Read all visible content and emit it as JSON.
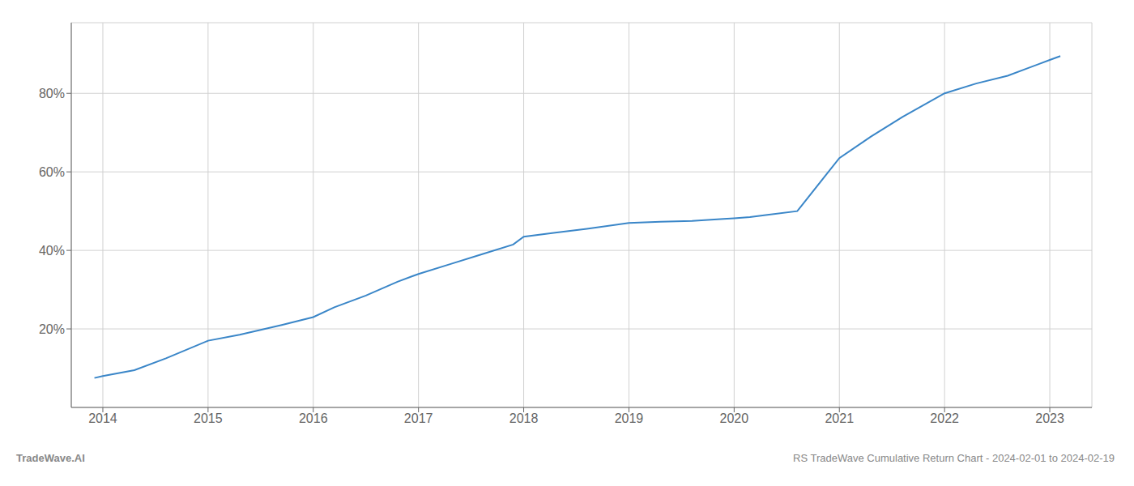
{
  "chart_data": {
    "type": "line",
    "x": [
      2013.92,
      2014.0,
      2014.3,
      2014.6,
      2015.0,
      2015.3,
      2015.7,
      2016.0,
      2016.2,
      2016.5,
      2016.8,
      2017.0,
      2017.3,
      2017.6,
      2017.9,
      2018.0,
      2018.3,
      2018.6,
      2019.0,
      2019.3,
      2019.6,
      2019.9,
      2020.0,
      2020.15,
      2020.3,
      2020.6,
      2021.0,
      2021.3,
      2021.6,
      2022.0,
      2022.3,
      2022.6,
      2022.9,
      2023.0,
      2023.1
    ],
    "values": [
      7.5,
      8.0,
      9.5,
      12.5,
      17.0,
      18.5,
      21.0,
      23.0,
      25.5,
      28.5,
      32.0,
      34.0,
      36.5,
      39.0,
      41.5,
      43.5,
      44.5,
      45.5,
      47.0,
      47.3,
      47.5,
      48.0,
      48.2,
      48.5,
      49.0,
      50.0,
      63.5,
      69.0,
      74.0,
      80.0,
      82.5,
      84.5,
      87.5,
      88.5,
      89.5
    ],
    "color": "#3a86c8",
    "xlim": [
      2013.7,
      2023.4
    ],
    "ylim": [
      0,
      98
    ],
    "xticks": [
      2014,
      2015,
      2016,
      2017,
      2018,
      2019,
      2020,
      2021,
      2022,
      2023
    ],
    "yticks": [
      {
        "value": 20,
        "label": "20%"
      },
      {
        "value": 40,
        "label": "40%"
      },
      {
        "value": 60,
        "label": "60%"
      },
      {
        "value": 80,
        "label": "80%"
      }
    ],
    "grid": true,
    "annotations": [
      "TradeWave.AI",
      "RS TradeWave Cumulative Return Chart - 2024-02-01 to 2024-02-19"
    ]
  }
}
